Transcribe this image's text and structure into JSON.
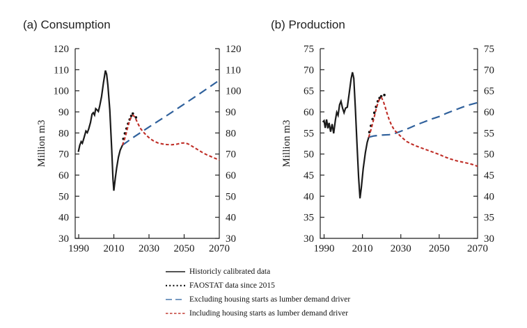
{
  "chart_data": [
    {
      "type": "line",
      "title": "(a) Consumption",
      "ylabel": "Million m3",
      "ylim": [
        30,
        120
      ],
      "ytick_step": 10,
      "xlim": [
        1988,
        2070
      ],
      "xticks": [
        1990,
        2010,
        2030,
        2050,
        2070
      ],
      "grid": false,
      "series": [
        {
          "key": "historical",
          "name": "Historicly calibrated data",
          "style": "solid",
          "color": "#1a1a1a",
          "points": [
            [
              1989.8,
              71
            ],
            [
              1990.6,
              74.2
            ],
            [
              1991.4,
              75.9
            ],
            [
              1992.1,
              75.1
            ],
            [
              1993,
              77.6
            ],
            [
              1994.1,
              80.9
            ],
            [
              1994.9,
              80.1
            ],
            [
              1995.7,
              81.9
            ],
            [
              1996.7,
              85
            ],
            [
              1997.6,
              88.9
            ],
            [
              1998.3,
              89.6
            ],
            [
              1999,
              88.5
            ],
            [
              1999.7,
              91.5
            ],
            [
              2000.4,
              91
            ],
            [
              2001.2,
              90.2
            ],
            [
              2002,
              92.9
            ],
            [
              2003,
              97.3
            ],
            [
              2004.1,
              103.8
            ],
            [
              2005.2,
              109.6
            ],
            [
              2005.9,
              107.8
            ],
            [
              2006.6,
              102.5
            ],
            [
              2007.7,
              91
            ],
            [
              2008.8,
              72
            ],
            [
              2009.5,
              58
            ],
            [
              2010,
              52.6
            ],
            [
              2010.8,
              58.5
            ],
            [
              2011.6,
              63.5
            ],
            [
              2012.6,
              68.5
            ],
            [
              2013.6,
              71.8
            ],
            [
              2014.9,
              74.2
            ]
          ]
        },
        {
          "key": "faostat",
          "name": "FAOSTAT data since 2015",
          "style": "dots",
          "color": "#111111",
          "points": [
            [
              2015.4,
              77.2
            ],
            [
              2016.3,
              79.8
            ],
            [
              2017.2,
              82.1
            ],
            [
              2018.1,
              84.4
            ],
            [
              2019,
              86.4
            ],
            [
              2019.9,
              88.1
            ],
            [
              2020.8,
              89.2
            ],
            [
              2022.6,
              87.4
            ]
          ]
        },
        {
          "key": "excluding",
          "name": "Excluding housing starts as lumber demand driver",
          "style": "longdash",
          "color": "#30619c",
          "points": [
            [
              2014.9,
              74.2
            ],
            [
              2020,
              77.3
            ],
            [
              2030,
              82.8
            ],
            [
              2040,
              88.2
            ],
            [
              2050,
              93.7
            ],
            [
              2060,
              99.3
            ],
            [
              2070,
              105
            ]
          ]
        },
        {
          "key": "including",
          "name": "Including housing starts as lumber demand driver",
          "style": "shortdash",
          "color": "#bf2d26",
          "points": [
            [
              2014.9,
              74.2
            ],
            [
              2016,
              76.8
            ],
            [
              2017,
              79.7
            ],
            [
              2018,
              83
            ],
            [
              2019,
              85.9
            ],
            [
              2020,
              87.7
            ],
            [
              2020.8,
              88.4
            ],
            [
              2021.6,
              87.9
            ],
            [
              2022.5,
              86.6
            ],
            [
              2023.5,
              84.8
            ],
            [
              2025,
              82.3
            ],
            [
              2026.5,
              80.7
            ],
            [
              2028.5,
              78.9
            ],
            [
              2030.5,
              77.4
            ],
            [
              2032.5,
              76.3
            ],
            [
              2035,
              75.3
            ],
            [
              2037.5,
              74.8
            ],
            [
              2040,
              74.5
            ],
            [
              2043,
              74.4
            ],
            [
              2046,
              74.7
            ],
            [
              2048.5,
              75.2
            ],
            [
              2050.5,
              75.3
            ],
            [
              2052.5,
              74.7
            ],
            [
              2055,
              73.5
            ],
            [
              2057.5,
              72.2
            ],
            [
              2060,
              70.9
            ],
            [
              2062.5,
              69.8
            ],
            [
              2065,
              68.9
            ],
            [
              2067.5,
              68
            ],
            [
              2070,
              67.2
            ]
          ]
        }
      ]
    },
    {
      "type": "line",
      "title": "(b) Production",
      "ylabel": "Million m3",
      "ylim": [
        30,
        75
      ],
      "ytick_step": 5,
      "xlim": [
        1988,
        2070
      ],
      "xticks": [
        1990,
        2010,
        2030,
        2050,
        2070
      ],
      "grid": false,
      "series": [
        {
          "key": "historical",
          "name": "Historicly calibrated data",
          "style": "solid",
          "color": "#1a1a1a",
          "points": [
            [
              1989.3,
              57.6
            ],
            [
              1990,
              57.9
            ],
            [
              1990.6,
              56.2
            ],
            [
              1991.3,
              58.2
            ],
            [
              1992,
              56.1
            ],
            [
              1992.6,
              57.4
            ],
            [
              1993.4,
              55.3
            ],
            [
              1994.2,
              57.1
            ],
            [
              1995,
              54.9
            ],
            [
              1995.9,
              58.1
            ],
            [
              1996.6,
              59.9
            ],
            [
              1997.3,
              59.2
            ],
            [
              1998.1,
              61.7
            ],
            [
              1998.8,
              62.5
            ],
            [
              1999.6,
              60.9
            ],
            [
              2000.4,
              59.8
            ],
            [
              2001.2,
              60.9
            ],
            [
              2002.1,
              61.1
            ],
            [
              2003.1,
              64.4
            ],
            [
              2004.1,
              67.9
            ],
            [
              2004.8,
              69.4
            ],
            [
              2005.5,
              68
            ],
            [
              2006.3,
              61
            ],
            [
              2007.2,
              52
            ],
            [
              2008,
              44.5
            ],
            [
              2008.7,
              39.5
            ],
            [
              2009.4,
              42
            ],
            [
              2010.4,
              46.5
            ],
            [
              2011.5,
              50.3
            ],
            [
              2012.5,
              52.8
            ],
            [
              2013.3,
              54
            ]
          ]
        },
        {
          "key": "faostat",
          "name": "FAOSTAT data since 2015",
          "style": "dots",
          "color": "#111111",
          "points": [
            [
              2013.6,
              55.2
            ],
            [
              2014.4,
              56.7
            ],
            [
              2015.3,
              58.3
            ],
            [
              2016.2,
              59.8
            ],
            [
              2017.1,
              61.2
            ],
            [
              2018,
              62.5
            ],
            [
              2018.9,
              63.3
            ],
            [
              2019.8,
              63.7
            ],
            [
              2021.4,
              64
            ]
          ]
        },
        {
          "key": "excluding",
          "name": "Excluding housing starts as lumber demand driver",
          "style": "longdash",
          "color": "#30619c",
          "points": [
            [
              2013.3,
              54
            ],
            [
              2016,
              54.3
            ],
            [
              2020,
              54.5
            ],
            [
              2024,
              54.6
            ],
            [
              2027,
              54.9
            ],
            [
              2030,
              55.4
            ],
            [
              2034,
              56.1
            ],
            [
              2038,
              56.9
            ],
            [
              2042,
              57.6
            ],
            [
              2046,
              58.3
            ],
            [
              2050,
              58.9
            ],
            [
              2054,
              59.7
            ],
            [
              2058,
              60.4
            ],
            [
              2062,
              61.1
            ],
            [
              2066,
              61.7
            ],
            [
              2070,
              62.2
            ]
          ]
        },
        {
          "key": "including",
          "name": "Including housing starts as lumber demand driver",
          "style": "shortdash",
          "color": "#bf2d26",
          "points": [
            [
              2013.3,
              54
            ],
            [
              2014.2,
              55.4
            ],
            [
              2015.2,
              57.1
            ],
            [
              2016.2,
              58.9
            ],
            [
              2017.2,
              60.8
            ],
            [
              2018.2,
              62.3
            ],
            [
              2019.1,
              63.2
            ],
            [
              2019.9,
              63.4
            ],
            [
              2020.8,
              62.6
            ],
            [
              2021.8,
              61.2
            ],
            [
              2022.8,
              59.7
            ],
            [
              2023.8,
              58.3
            ],
            [
              2025.2,
              56.8
            ],
            [
              2026.8,
              55.6
            ],
            [
              2028.6,
              54.8
            ],
            [
              2030.6,
              53.9
            ],
            [
              2033,
              53
            ],
            [
              2035.5,
              52.4
            ],
            [
              2038,
              51.9
            ],
            [
              2041,
              51.4
            ],
            [
              2044,
              50.9
            ],
            [
              2047,
              50.4
            ],
            [
              2050,
              49.9
            ],
            [
              2053,
              49.3
            ],
            [
              2056,
              48.8
            ],
            [
              2059,
              48.4
            ],
            [
              2062,
              48.1
            ],
            [
              2065,
              47.8
            ],
            [
              2067.5,
              47.5
            ],
            [
              2070,
              47.1
            ]
          ]
        }
      ]
    }
  ],
  "legend": {
    "items": [
      {
        "label": "Historicly calibrated data",
        "style": "solid",
        "color": "#1a1a1a"
      },
      {
        "label": "FAOSTAT data since 2015",
        "style": "dotted",
        "color": "#1a1a1a"
      },
      {
        "label": "Excluding housing starts as lumber demand driver",
        "style": "longdash",
        "color": "#4a79ad"
      },
      {
        "label": "Including housing starts as lumber demand driver",
        "style": "shortdash",
        "color": "#c23b33"
      }
    ]
  }
}
